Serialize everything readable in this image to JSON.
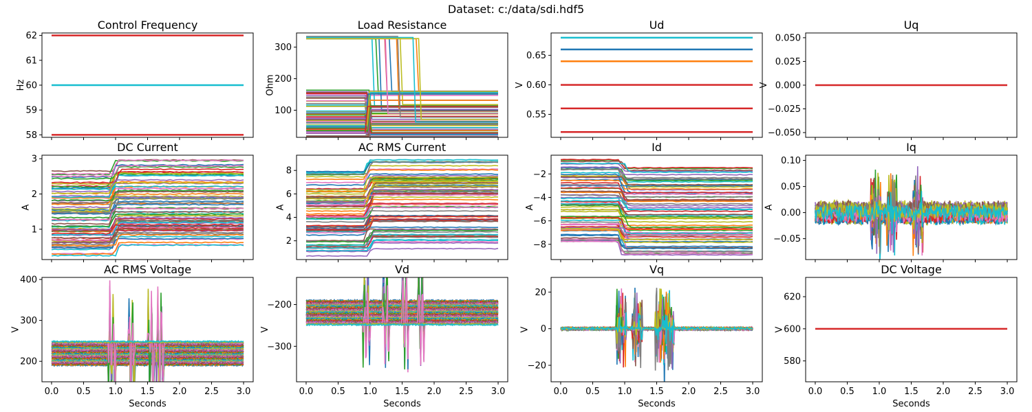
{
  "suptitle": "Dataset: c:/data/sdi.hdf5",
  "palette": [
    "#1f77b4",
    "#ff7f0e",
    "#2ca02c",
    "#d62728",
    "#9467bd",
    "#8c564b",
    "#e377c2",
    "#7f7f7f",
    "#bcbd22",
    "#17becf"
  ],
  "chart_data": [
    {
      "type": "line",
      "title": "Control Frequency",
      "ylabel": "Hz",
      "xlabel": "",
      "x_range": [
        0,
        3
      ],
      "ylim": [
        57.9,
        62.1
      ],
      "yticks": [
        58,
        59,
        60,
        61,
        62
      ],
      "ytick_labels": [
        "58",
        "59",
        "60",
        "61",
        "62"
      ],
      "xticks": [
        0,
        0.5,
        1,
        1.5,
        2,
        2.5,
        3
      ],
      "xtick_labels": [],
      "series": [
        {
          "color": "#d62728",
          "values_constant": 58
        },
        {
          "color": "#17becf",
          "values_constant": 60
        },
        {
          "color": "#d62728",
          "values_constant": 62
        }
      ]
    },
    {
      "type": "line",
      "title": "Load Resistance",
      "ylabel": "Ohm",
      "xlabel": "",
      "x_range": [
        0,
        3
      ],
      "ylim": [
        14,
        345
      ],
      "yticks": [
        100,
        200,
        300
      ],
      "ytick_labels": [
        "100",
        "200",
        "300"
      ],
      "xticks": [
        0,
        0.5,
        1,
        1.5,
        2,
        2.5,
        3
      ],
      "xtick_labels": [],
      "series_desc": "~100 runs; resistance steps down at t≈0.95 s; several runs start at 330 Ohm and drop between 1.0 and 1.85 s",
      "start_levels": [
        330,
        330,
        330,
        330,
        160,
        155,
        150,
        140,
        130,
        120,
        110,
        100,
        95,
        90,
        85,
        80,
        75,
        70,
        65,
        60,
        55,
        50,
        45,
        40,
        35,
        30,
        25,
        20
      ],
      "end_levels": [
        160,
        155,
        150,
        130,
        115,
        110,
        100,
        95,
        90,
        80,
        70,
        65,
        60,
        55,
        50,
        45,
        40,
        35,
        30,
        25,
        20,
        18,
        16,
        15
      ]
    },
    {
      "type": "line",
      "title": "Ud",
      "ylabel": "V",
      "xlabel": "",
      "x_range": [
        0,
        3
      ],
      "ylim": [
        0.511,
        0.688
      ],
      "yticks": [
        0.55,
        0.6,
        0.65
      ],
      "ytick_labels": [
        "0.55",
        "0.60",
        "0.65"
      ],
      "xticks": [
        0,
        0.5,
        1,
        1.5,
        2,
        2.5,
        3
      ],
      "xtick_labels": [],
      "series": [
        {
          "color": "#d62728",
          "values_constant": 0.52
        },
        {
          "color": "#d62728",
          "values_constant": 0.56
        },
        {
          "color": "#d62728",
          "values_constant": 0.6
        },
        {
          "color": "#ff7f0e",
          "values_constant": 0.64
        },
        {
          "color": "#1f77b4",
          "values_constant": 0.66
        },
        {
          "color": "#17becf",
          "values_constant": 0.68
        }
      ]
    },
    {
      "type": "line",
      "title": "Uq",
      "ylabel": "V",
      "xlabel": "",
      "x_range": [
        0,
        3
      ],
      "ylim": [
        -0.055,
        0.055
      ],
      "yticks": [
        -0.05,
        -0.025,
        0,
        0.025,
        0.05
      ],
      "ytick_labels": [
        "−0.050",
        "−0.025",
        "0.000",
        "0.025",
        "0.050"
      ],
      "xticks": [
        0,
        0.5,
        1,
        1.5,
        2,
        2.5,
        3
      ],
      "xtick_labels": [],
      "series": [
        {
          "color": "#d62728",
          "values_constant": 0
        }
      ]
    },
    {
      "type": "line",
      "title": "DC Current",
      "ylabel": "A",
      "xlabel": "",
      "x_range": [
        0,
        3
      ],
      "ylim": [
        0.14,
        3.1
      ],
      "yticks": [
        1,
        2,
        3
      ],
      "ytick_labels": [
        "1",
        "2",
        "3"
      ],
      "xticks": [
        0,
        0.5,
        1,
        1.5,
        2,
        2.5,
        3
      ],
      "xtick_labels": [],
      "series_desc": "~100 runs; current steps up at t≈0.95 s; start levels 0.25–2.65 A, end levels 0.55–3.0 A"
    },
    {
      "type": "line",
      "title": "AC RMS Current",
      "ylabel": "A",
      "xlabel": "",
      "x_range": [
        0,
        3
      ],
      "ylim": [
        0.4,
        9.3
      ],
      "yticks": [
        2,
        4,
        6,
        8
      ],
      "ytick_labels": [
        "2",
        "4",
        "6",
        "8"
      ],
      "xticks": [
        0,
        0.5,
        1,
        1.5,
        2,
        2.5,
        3
      ],
      "xtick_labels": [],
      "series_desc": "~100 runs; current steps up at t≈0.95 s; start levels 0.7–7.9 A, end levels 1.5–8.9 A"
    },
    {
      "type": "line",
      "title": "Id",
      "ylabel": "A",
      "xlabel": "",
      "x_range": [
        0,
        3
      ],
      "ylim": [
        -9.3,
        -0.4
      ],
      "yticks": [
        -8,
        -6,
        -4,
        -2
      ],
      "ytick_labels": [
        "−8",
        "−6",
        "−4",
        "−2"
      ],
      "xticks": [
        0,
        0.5,
        1,
        1.5,
        2,
        2.5,
        3
      ],
      "xtick_labels": [],
      "series_desc": "~100 runs; mirror of AC RMS current; steps down at t≈0.95 s"
    },
    {
      "type": "line",
      "title": "Iq",
      "ylabel": "A",
      "xlabel": "",
      "x_range": [
        0,
        3
      ],
      "ylim": [
        -0.09,
        0.11
      ],
      "yticks": [
        -0.05,
        0,
        0.05,
        0.1
      ],
      "ytick_labels": [
        "−0.05",
        "0.00",
        "0.05",
        "0.10"
      ],
      "xticks": [
        0,
        0.5,
        1,
        1.5,
        2,
        2.5,
        3
      ],
      "xtick_labels": [],
      "series_desc": "noisy band around 0 (±0.02) with transient spikes near t≈0.95, 1.2, 1.6 s"
    },
    {
      "type": "line",
      "title": "AC RMS Voltage",
      "ylabel": "V",
      "xlabel": "Seconds",
      "x_range": [
        0,
        3
      ],
      "ylim": [
        150,
        405
      ],
      "yticks": [
        200,
        300,
        400
      ],
      "ytick_labels": [
        "200",
        "300",
        "400"
      ],
      "xticks": [
        0,
        0.5,
        1,
        1.5,
        2,
        2.5,
        3
      ],
      "xtick_labels": [
        "0.0",
        "0.5",
        "1.0",
        "1.5",
        "2.0",
        "2.5",
        "3.0"
      ],
      "series_desc": "flat levels 190–250 V with transients near t≈0.95, 1.25, 1.55, 1.7 s reaching ~395 V"
    },
    {
      "type": "line",
      "title": "Vd",
      "ylabel": "V",
      "xlabel": "Seconds",
      "x_range": [
        0,
        3
      ],
      "ylim": [
        -385,
        -135
      ],
      "yticks": [
        -300,
        -200
      ],
      "ytick_labels": [
        "−300",
        "−200"
      ],
      "xticks": [
        0,
        0.5,
        1,
        1.5,
        2,
        2.5,
        3
      ],
      "xtick_labels": [
        "0.0",
        "0.5",
        "1.0",
        "1.5",
        "2.0",
        "2.5",
        "3.0"
      ],
      "series_desc": "flat levels −190 to −250 V with transients near t≈0.95, 1.25, 1.55, 1.8 s down to ~−380 V"
    },
    {
      "type": "line",
      "title": "Vq",
      "ylabel": "V",
      "xlabel": "Seconds",
      "x_range": [
        0,
        3
      ],
      "ylim": [
        -29,
        28
      ],
      "yticks": [
        -20,
        0,
        20
      ],
      "ytick_labels": [
        "−20",
        "0",
        "20"
      ],
      "xticks": [
        0,
        0.5,
        1,
        1.5,
        2,
        2.5,
        3
      ],
      "xtick_labels": [
        "0.0",
        "0.5",
        "1.0",
        "1.5",
        "2.0",
        "2.5",
        "3.0"
      ],
      "series_desc": "noise around 0 with transient bursts near t≈0.95, 1.2, 1.55–1.8 s up to ±25 V"
    },
    {
      "type": "line",
      "title": "DC Voltage",
      "ylabel": "V",
      "xlabel": "Seconds",
      "x_range": [
        0,
        3
      ],
      "ylim": [
        567,
        632
      ],
      "yticks": [
        580,
        600,
        620
      ],
      "ytick_labels": [
        "580",
        "600",
        "620"
      ],
      "xticks": [
        0,
        0.5,
        1,
        1.5,
        2,
        2.5,
        3
      ],
      "xtick_labels": [
        "0.0",
        "0.5",
        "1.0",
        "1.5",
        "2.0",
        "2.5",
        "3.0"
      ],
      "series": [
        {
          "color": "#d62728",
          "values_constant": 600
        }
      ]
    }
  ]
}
